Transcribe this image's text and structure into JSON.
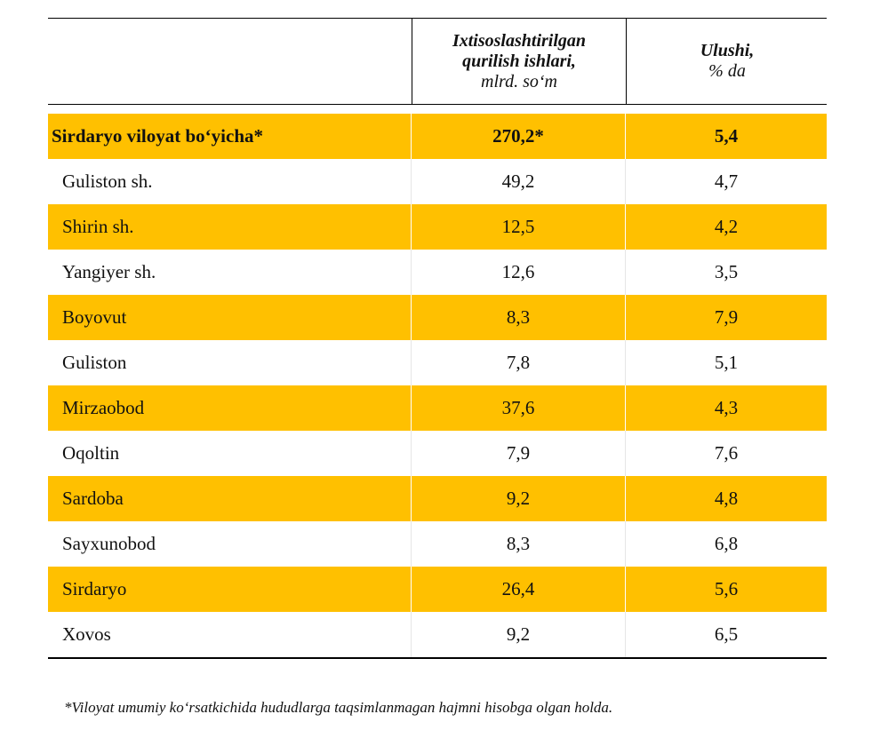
{
  "header": {
    "col1_line1": "Ixtisoslashtirilgan",
    "col1_line2": "qurilish ishlari,",
    "col1_unit": "mlrd. so‘m",
    "col2_line1": "Ulushi,",
    "col2_unit": "% da"
  },
  "total": {
    "name": "Sirdaryo viloyat bo‘yicha*",
    "value": "270,2*",
    "share": "5,4"
  },
  "rows": [
    {
      "name": "Guliston sh.",
      "value": "49,2",
      "share": "4,7"
    },
    {
      "name": "Shirin sh.",
      "value": "12,5",
      "share": "4,2"
    },
    {
      "name": "Yangiyer sh.",
      "value": "12,6",
      "share": "3,5"
    },
    {
      "name": "Boyovut",
      "value": "8,3",
      "share": "7,9"
    },
    {
      "name": "Guliston",
      "value": "7,8",
      "share": "5,1"
    },
    {
      "name": "Mirzaobod",
      "value": "37,6",
      "share": "4,3"
    },
    {
      "name": "Oqoltin",
      "value": "7,9",
      "share": "7,6"
    },
    {
      "name": "Sardoba",
      "value": "9,2",
      "share": "4,8"
    },
    {
      "name": "Sayxunobod",
      "value": "8,3",
      "share": "6,8"
    },
    {
      "name": "Sirdaryo",
      "value": "26,4",
      "share": "5,6"
    },
    {
      "name": "Xovos",
      "value": "9,2",
      "share": "6,5"
    }
  ],
  "footnote": "*Viloyat umumiy ko‘rsatkichida hududlarga taqsimlanmagan hajmni hisobga olgan holda.",
  "colors": {
    "highlight": "#FFC000",
    "background": "#FFFFFF",
    "rule": "#000000"
  }
}
